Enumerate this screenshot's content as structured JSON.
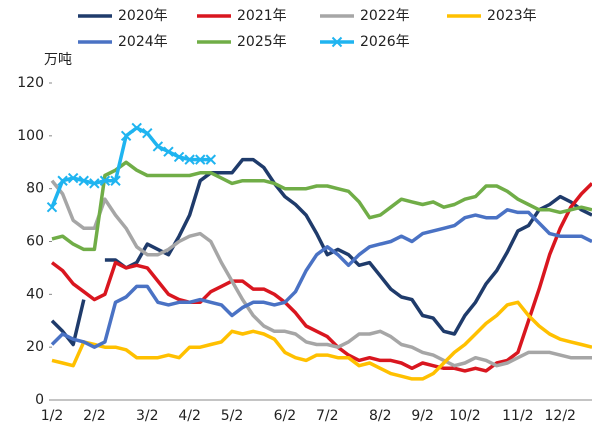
{
  "chart_data": {
    "type": "line",
    "y_label": "万吨",
    "categories": [
      "1/2",
      null,
      null,
      null,
      "2/2",
      null,
      null,
      null,
      null,
      "3/2",
      null,
      null,
      null,
      "4/2",
      null,
      null,
      null,
      "5/2",
      null,
      null,
      null,
      null,
      "6/2",
      null,
      null,
      null,
      "7/2",
      null,
      null,
      null,
      null,
      "8/2",
      null,
      null,
      null,
      "9/2",
      null,
      null,
      null,
      "10/2",
      null,
      null,
      null,
      null,
      "11/2",
      null,
      null,
      null,
      "12/2",
      null,
      null,
      null
    ],
    "ylim": [
      0,
      120
    ],
    "yticks": [
      0,
      20,
      40,
      60,
      80,
      100,
      120
    ],
    "series": [
      {
        "name": "2020年",
        "color": "#1f3b6b",
        "values": [
          30,
          26,
          21,
          38,
          null,
          53,
          53,
          50,
          52,
          59,
          57,
          55,
          62,
          70,
          83,
          86,
          86,
          86,
          91,
          91,
          88,
          82,
          77,
          74,
          70,
          63,
          55,
          57,
          55,
          51,
          52,
          47,
          42,
          39,
          38,
          32,
          31,
          26,
          25,
          32,
          37,
          44,
          49,
          56,
          64,
          66,
          72,
          74,
          77,
          75,
          72,
          70
        ]
      },
      {
        "name": "2021年",
        "color": "#d9161f",
        "values": [
          52,
          49,
          44,
          41,
          38,
          40,
          52,
          50,
          51,
          50,
          45,
          40,
          38,
          37,
          37,
          41,
          43,
          45,
          45,
          42,
          42,
          40,
          37,
          33,
          28,
          26,
          24,
          20,
          17,
          15,
          16,
          15,
          15,
          14,
          12,
          14,
          13,
          12,
          12,
          11,
          12,
          11,
          14,
          15,
          18,
          30,
          42,
          55,
          65,
          73,
          78,
          82
        ]
      },
      {
        "name": "2022年",
        "color": "#a6a6a6",
        "values": [
          83,
          78,
          68,
          65,
          65,
          76,
          70,
          65,
          58,
          55,
          55,
          57,
          60,
          62,
          63,
          60,
          52,
          45,
          38,
          32,
          28,
          26,
          26,
          25,
          22,
          21,
          21,
          20,
          22,
          25,
          25,
          26,
          24,
          21,
          20,
          18,
          17,
          15,
          13,
          14,
          16,
          15,
          13,
          14,
          16,
          18,
          18,
          18,
          17,
          16,
          16,
          16
        ]
      },
      {
        "name": "2023年",
        "color": "#ffc000",
        "values": [
          15,
          14,
          13,
          22,
          21,
          20,
          20,
          19,
          16,
          16,
          16,
          17,
          16,
          20,
          20,
          21,
          22,
          26,
          25,
          26,
          25,
          23,
          18,
          16,
          15,
          17,
          17,
          16,
          16,
          13,
          14,
          12,
          10,
          9,
          8,
          8,
          10,
          14,
          18,
          21,
          25,
          29,
          32,
          36,
          37,
          32,
          28,
          25,
          23,
          22,
          21,
          20
        ]
      },
      {
        "name": "2024年",
        "color": "#4a72c4",
        "values": [
          21,
          25,
          23,
          22,
          20,
          22,
          37,
          39,
          43,
          43,
          37,
          36,
          37,
          37,
          38,
          37,
          36,
          32,
          35,
          37,
          37,
          36,
          37,
          41,
          49,
          55,
          58,
          55,
          51,
          55,
          58,
          59,
          60,
          62,
          60,
          63,
          64,
          65,
          66,
          69,
          70,
          69,
          69,
          72,
          71,
          71,
          67,
          63,
          62,
          62,
          62,
          60
        ]
      },
      {
        "name": "2025年",
        "color": "#70ad47",
        "values": [
          61,
          62,
          59,
          57,
          57,
          85,
          87,
          90,
          87,
          85,
          85,
          85,
          85,
          85,
          86,
          86,
          84,
          82,
          83,
          83,
          83,
          82,
          80,
          80,
          80,
          81,
          81,
          80,
          79,
          75,
          69,
          70,
          73,
          76,
          75,
          74,
          75,
          73,
          74,
          76,
          77,
          81,
          81,
          79,
          76,
          74,
          72,
          72,
          71,
          72,
          73,
          72
        ]
      },
      {
        "name": "2026年",
        "color": "#1fb4f0",
        "marker": "x",
        "values": [
          73,
          83,
          84,
          83,
          82,
          83,
          83,
          100,
          103,
          101,
          96,
          94,
          92,
          91,
          91,
          91,
          null,
          null,
          null,
          null,
          null,
          null,
          null,
          null,
          null,
          null,
          null,
          null,
          null,
          null,
          null,
          null,
          null,
          null,
          null,
          null,
          null,
          null,
          null,
          null,
          null,
          null,
          null,
          null,
          null,
          null,
          null,
          null,
          null,
          null,
          null,
          null
        ]
      }
    ]
  }
}
